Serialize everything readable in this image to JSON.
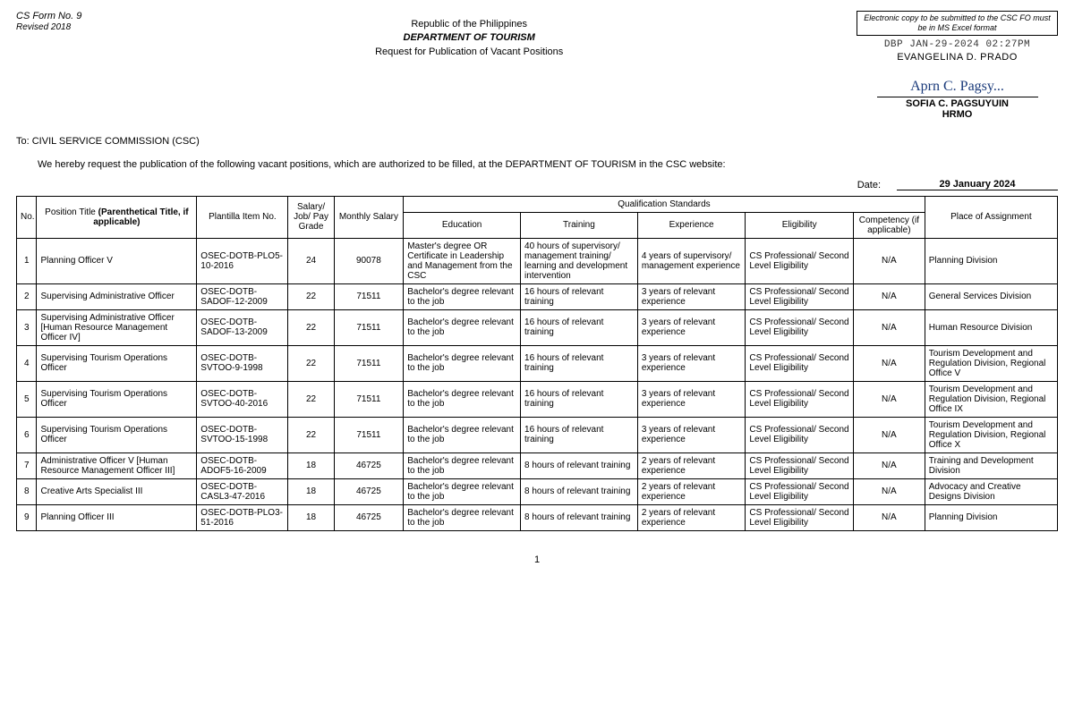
{
  "form": {
    "no": "CS Form No. 9",
    "rev": "Revised 2018"
  },
  "header": {
    "line1": "Republic of the Philippines",
    "line2": "DEPARTMENT OF TOURISM",
    "line3": "Request for Publication of Vacant Positions"
  },
  "notice": "Electronic copy to be submitted to the CSC FO must be in MS Excel format",
  "stamp": "DBP JAN-29-2024 02:27PM",
  "signer1": "EVANGELINA D. PRADO",
  "sigscript": "Aprn C. Pagsy...",
  "signer2": "SOFIA C. PAGSUYUIN",
  "hrmo": "HRMO",
  "to": "To: CIVIL SERVICE COMMISSION (CSC)",
  "intro": "We hereby request the publication of the following vacant positions, which are authorized to be filled, at the DEPARTMENT OF TOURISM in the CSC website:",
  "date_label": "Date:",
  "date_value": "29 January 2024",
  "thead": {
    "no": "No.",
    "pos_l1": "Position Title ",
    "pos_bold": "(Parenthetical Title, if applicable)",
    "item": "Plantilla Item No.",
    "grade": "Salary/ Job/ Pay Grade",
    "salary": "Monthly Salary",
    "qs": "Qualification Standards",
    "edu": "Education",
    "train": "Training",
    "exp": "Experience",
    "elig": "Eligibility",
    "comp": "Competency (if applicable)",
    "place": "Place of Assignment"
  },
  "rows": [
    {
      "n": "1",
      "pos": "Planning Officer V",
      "item": "OSEC-DOTB-PLO5-10-2016",
      "grade": "24",
      "salary": "90078",
      "edu": "Master's degree OR Certificate in Leadership and Management from the CSC",
      "train": "40 hours of supervisory/ management training/ learning and development intervention",
      "exp": "4 years of supervisory/ management experience",
      "elig": "CS Professional/ Second Level Eligibility",
      "comp": "N/A",
      "place": "Planning Division"
    },
    {
      "n": "2",
      "pos": "Supervising Administrative Officer",
      "item": "OSEC-DOTB-SADOF-12-2009",
      "grade": "22",
      "salary": "71511",
      "edu": "Bachelor's degree relevant to the job",
      "train": "16 hours of relevant training",
      "exp": "3 years of relevant experience",
      "elig": "CS Professional/ Second Level Eligibility",
      "comp": "N/A",
      "place": "General Services Division"
    },
    {
      "n": "3",
      "pos": "Supervising Administrative Officer [Human Resource Management Officer IV]",
      "item": "OSEC-DOTB-SADOF-13-2009",
      "grade": "22",
      "salary": "71511",
      "edu": "Bachelor's degree relevant to the job",
      "train": "16 hours of relevant training",
      "exp": "3 years of relevant experience",
      "elig": "CS Professional/ Second Level Eligibility",
      "comp": "N/A",
      "place": "Human Resource Division"
    },
    {
      "n": "4",
      "pos": "Supervising Tourism Operations Officer",
      "item": "OSEC-DOTB-SVTOO-9-1998",
      "grade": "22",
      "salary": "71511",
      "edu": "Bachelor's degree relevant to the job",
      "train": "16 hours of relevant training",
      "exp": "3 years of relevant experience",
      "elig": "CS Professional/ Second Level Eligibility",
      "comp": "N/A",
      "place": "Tourism Development and Regulation Division, Regional Office V"
    },
    {
      "n": "5",
      "pos": "Supervising Tourism Operations Officer",
      "item": "OSEC-DOTB-SVTOO-40-2016",
      "grade": "22",
      "salary": "71511",
      "edu": "Bachelor's degree relevant to the job",
      "train": "16 hours of relevant training",
      "exp": "3 years of relevant experience",
      "elig": "CS Professional/ Second Level Eligibility",
      "comp": "N/A",
      "place": "Tourism Development and Regulation Division, Regional Office IX"
    },
    {
      "n": "6",
      "pos": "Supervising Tourism Operations Officer",
      "item": "OSEC-DOTB-SVTOO-15-1998",
      "grade": "22",
      "salary": "71511",
      "edu": "Bachelor's degree relevant to the job",
      "train": "16 hours of relevant training",
      "exp": "3 years of relevant experience",
      "elig": "CS Professional/ Second Level Eligibility",
      "comp": "N/A",
      "place": "Tourism Development and Regulation Division, Regional Office X"
    },
    {
      "n": "7",
      "pos": "Administrative Officer V [Human Resource Management Officer III]",
      "item": "OSEC-DOTB-ADOF5-16-2009",
      "grade": "18",
      "salary": "46725",
      "edu": "Bachelor's degree relevant to the job",
      "train": "8 hours of relevant training",
      "exp": "2 years of relevant experience",
      "elig": "CS Professional/ Second Level Eligibility",
      "comp": "N/A",
      "place": "Training and Development Division"
    },
    {
      "n": "8",
      "pos": "Creative Arts Specialist III",
      "item": "OSEC-DOTB-CASL3-47-2016",
      "grade": "18",
      "salary": "46725",
      "edu": "Bachelor's degree relevant to the job",
      "train": "8 hours of relevant training",
      "exp": "2 years of relevant experience",
      "elig": "CS Professional/ Second Level Eligibility",
      "comp": "N/A",
      "place": "Advocacy and Creative Designs Division"
    },
    {
      "n": "9",
      "pos": "Planning Officer III",
      "item": "OSEC-DOTB-PLO3-51-2016",
      "grade": "18",
      "salary": "46725",
      "edu": "Bachelor's degree relevant to the job",
      "train": "8 hours of relevant training",
      "exp": "2 years of relevant experience",
      "elig": "CS Professional/ Second Level Eligibility",
      "comp": "N/A",
      "place": "Planning Division"
    }
  ],
  "page": "1"
}
